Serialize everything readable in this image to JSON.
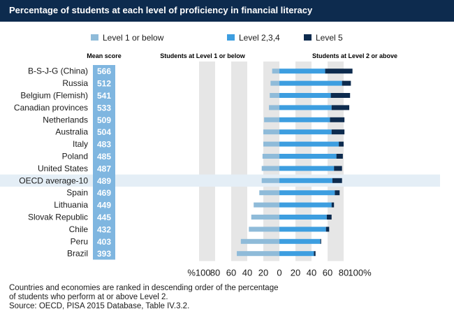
{
  "chart_data": {
    "type": "bar",
    "title": "Percentage of students at each level of proficiency in financial literacy",
    "legend": {
      "placement": "top",
      "entries": [
        {
          "name": "Level 1 or below",
          "color": "#8fbbd9"
        },
        {
          "name": "Level 2,3,4",
          "color": "#3d9ee0"
        },
        {
          "name": "Level 5",
          "color": "#0d2b4e"
        }
      ]
    },
    "column_headers": {
      "mean": "Mean score",
      "left": "Students at Level 1 or below",
      "right": "Students at Level 2 or above"
    },
    "categories": [
      "B-S-J-G (China)",
      "Russia",
      "Belgium (Flemish)",
      "Canadian provinces",
      "Netherlands",
      "Australia",
      "Italy",
      "Poland",
      "United States",
      "OECD average-10",
      "Spain",
      "Lithuania",
      "Slovak Republic",
      "Chile",
      "Peru",
      "Brazil"
    ],
    "highlighted_category": "OECD average-10",
    "mean_scores": [
      566,
      512,
      541,
      533,
      509,
      504,
      483,
      485,
      487,
      489,
      469,
      449,
      445,
      432,
      403,
      393
    ],
    "series": [
      {
        "name": "Level 1 or below",
        "values": [
          9,
          11,
          12,
          13,
          19,
          20,
          20,
          21,
          22,
          22,
          25,
          32,
          35,
          38,
          48,
          53
        ]
      },
      {
        "name": "Level 2,3,4",
        "values": [
          57,
          78,
          64,
          65,
          63,
          65,
          74,
          71,
          68,
          66,
          69,
          65,
          59,
          58,
          51,
          43
        ]
      },
      {
        "name": "Level 5",
        "values": [
          34,
          11,
          24,
          22,
          18,
          16,
          6,
          8,
          10,
          12,
          6,
          3,
          6,
          4,
          1,
          2
        ]
      }
    ],
    "x_ticks": [
      "%100",
      "80",
      "60",
      "40",
      "20",
      "0",
      "20",
      "40",
      "60",
      "80",
      "100%"
    ],
    "xlim": [
      -100,
      100
    ],
    "grid": "alternating shaded bands every 20"
  },
  "footnote": {
    "line1": "Countries and economies are ranked in descending order of the percentage",
    "line2": "of students who perform at or above Level 2.",
    "line3": "Source: OECD, PISA 2015 Database, Table IV.3.2."
  },
  "colors": {
    "header_bg": "#0d2b4e",
    "mean_box": "#7fb6e0",
    "band": "#e6e6e6",
    "highlight_row": "#e4eef6"
  }
}
